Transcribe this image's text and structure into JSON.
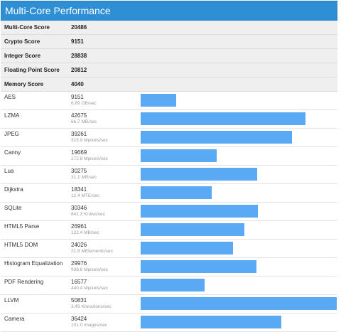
{
  "header": {
    "title": "Multi-Core Performance"
  },
  "scores": [
    {
      "label": "Multi-Core Score",
      "value": "20486"
    },
    {
      "label": "Crypto Score",
      "value": "9151"
    },
    {
      "label": "Integer Score",
      "value": "28838"
    },
    {
      "label": "Floating Point Score",
      "value": "20812"
    },
    {
      "label": "Memory Score",
      "value": "4040"
    }
  ],
  "benchmarks": [
    {
      "name": "AES",
      "score": "9151",
      "detail": "6.89 GB/sec",
      "value": 9151
    },
    {
      "name": "LZMA",
      "score": "42675",
      "detail": "66.7 MB/sec",
      "value": 42675
    },
    {
      "name": "JPEG",
      "score": "39261",
      "detail": "315.9 Mpixels/sec",
      "value": 39261
    },
    {
      "name": "Canny",
      "score": "19669",
      "detail": "272.8 Mpixels/sec",
      "value": 19669
    },
    {
      "name": "Lua",
      "score": "30275",
      "detail": "31.1 MB/sec",
      "value": 30275
    },
    {
      "name": "Dijkstra",
      "score": "18341",
      "detail": "12.4 MTE/sec",
      "value": 18341
    },
    {
      "name": "SQLite",
      "score": "30346",
      "detail": "841.3 Krows/sec",
      "value": 30346
    },
    {
      "name": "HTML5 Parse",
      "score": "26961",
      "detail": "122.4 MB/sec",
      "value": 26961
    },
    {
      "name": "HTML5 DOM",
      "score": "24026",
      "detail": "21.8 MElements/sec",
      "value": 24026
    },
    {
      "name": "Histogram Equalization",
      "score": "29976",
      "detail": "936.6 Mpixels/sec",
      "value": 29976
    },
    {
      "name": "PDF Rendering",
      "score": "16577",
      "detail": "440.4 Mpixels/sec",
      "value": 16577
    },
    {
      "name": "LLVM",
      "score": "50831",
      "detail": "3.49 Kfunctions/sec",
      "value": 50831
    },
    {
      "name": "Camera",
      "score": "36424",
      "detail": "101.0 images/sec",
      "value": 36424
    }
  ],
  "colors": {
    "header": "#2f8fd5",
    "bar": "#5aa9f5"
  }
}
